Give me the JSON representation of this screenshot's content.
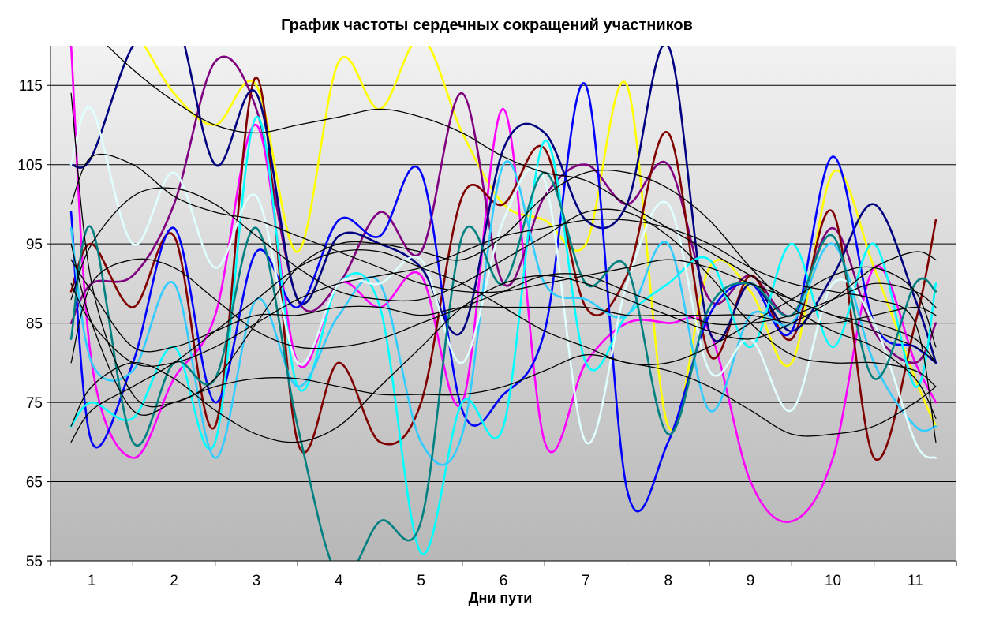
{
  "chart_data": {
    "type": "line",
    "title": "График частоты сердечных сокращений участников",
    "xlabel": "Дни пути",
    "ylabel": "",
    "x": [
      1,
      2,
      3,
      4,
      5,
      6,
      7,
      8,
      9,
      10,
      11
    ],
    "xlim": [
      0.5,
      11.5
    ],
    "ylim": [
      55,
      120
    ],
    "yticks": [
      55,
      65,
      75,
      85,
      95,
      105,
      115
    ],
    "grid": true,
    "legend": "none",
    "smooth": true,
    "background_gradient": [
      "#f2f2f2",
      "#b7b7b7"
    ],
    "series": [
      {
        "color": "#ffff00",
        "x": [
          1.0,
          1.5,
          2.0,
          2.5,
          3.0,
          3.5,
          4.0,
          4.5,
          5.0,
          5.5,
          6.0,
          6.5,
          7.0,
          7.5,
          8.0,
          8.5,
          9.0,
          9.5,
          10.0,
          10.5,
          11.0,
          11.25
        ],
        "values": [
          125,
          122,
          114,
          110,
          115,
          94,
          118,
          112,
          121,
          109,
          100,
          98,
          95,
          115,
          72,
          92,
          89,
          80,
          104,
          92,
          78,
          72
        ]
      },
      {
        "color": "#ff00ff",
        "x": [
          0.75,
          1.0,
          1.5,
          2.0,
          2.5,
          3.0,
          3.5,
          4.0,
          4.5,
          5.0,
          5.5,
          6.0,
          6.5,
          7.0,
          7.5,
          8.0,
          8.5,
          9.0,
          9.5,
          10.0,
          10.5,
          11.0,
          11.25
        ],
        "values": [
          120,
          80,
          68,
          78,
          86,
          110,
          80,
          90,
          87,
          91,
          75,
          112,
          70,
          80,
          85,
          85,
          84,
          65,
          60,
          68,
          92,
          80,
          75
        ]
      },
      {
        "color": "#800080",
        "x": [
          0.75,
          1.0,
          1.5,
          2.0,
          2.5,
          3.0,
          3.5,
          4.0,
          4.5,
          5.0,
          5.5,
          6.0,
          6.5,
          7.0,
          7.5,
          8.0,
          8.5,
          9.0,
          9.5,
          10.0,
          10.5,
          11.0,
          11.25
        ],
        "values": [
          85,
          90,
          91,
          100,
          118,
          112,
          88,
          90,
          99,
          94,
          114,
          90,
          101,
          105,
          100,
          105,
          88,
          91,
          86,
          97,
          84,
          80,
          85
        ]
      },
      {
        "color": "#800000",
        "x": [
          0.75,
          1.0,
          1.5,
          2.0,
          2.5,
          3.0,
          3.5,
          4.0,
          4.5,
          5.0,
          5.5,
          6.0,
          6.5,
          7.0,
          7.5,
          8.0,
          8.5,
          9.0,
          9.5,
          10.0,
          10.5,
          11.0,
          11.25
        ],
        "values": [
          89,
          95,
          87,
          96,
          72,
          116,
          70,
          80,
          70,
          75,
          101,
          100,
          107,
          87,
          91,
          109,
          81,
          91,
          83,
          99,
          68,
          85,
          98
        ]
      },
      {
        "color": "#000080",
        "x": [
          0.75,
          1.0,
          1.5,
          2.0,
          2.5,
          3.0,
          3.5,
          4.0,
          4.5,
          5.0,
          5.5,
          6.0,
          6.5,
          7.0,
          7.5,
          8.0,
          8.5,
          9.0,
          9.5,
          10.0,
          10.5,
          11.0,
          11.25
        ],
        "values": [
          105,
          106,
          120,
          124,
          105,
          114,
          88,
          96,
          95,
          92,
          84,
          107,
          109,
          98,
          100,
          120,
          84,
          90,
          84,
          91,
          100,
          88,
          80
        ]
      },
      {
        "color": "#0000ff",
        "x": [
          0.75,
          1.0,
          1.5,
          2.0,
          2.5,
          3.0,
          3.5,
          4.0,
          4.5,
          5.0,
          5.5,
          6.0,
          6.5,
          7.0,
          7.5,
          8.0,
          8.5,
          9.0,
          9.5,
          10.0,
          10.5,
          11.0,
          11.25
        ],
        "values": [
          99,
          70,
          80,
          97,
          75,
          94,
          87,
          98,
          96,
          104,
          74,
          76,
          84,
          115,
          64,
          70,
          86,
          90,
          84,
          106,
          85,
          82,
          80
        ]
      },
      {
        "color": "#00ffff",
        "x": [
          0.75,
          1.0,
          1.5,
          2.0,
          2.5,
          3.0,
          3.5,
          4.0,
          4.5,
          5.0,
          5.5,
          6.0,
          6.5,
          7.0,
          7.5,
          8.0,
          8.5,
          9.0,
          9.5,
          10.0,
          10.5,
          11.0,
          11.25
        ],
        "values": [
          72,
          75,
          73,
          82,
          70,
          111,
          77,
          90,
          87,
          56,
          75,
          72,
          108,
          80,
          86,
          90,
          93,
          82,
          95,
          82,
          95,
          77,
          90
        ]
      },
      {
        "color": "#33ccff",
        "x": [
          0.75,
          1.0,
          1.5,
          2.0,
          2.5,
          3.0,
          3.5,
          4.0,
          4.5,
          5.0,
          5.5,
          6.0,
          6.5,
          7.0,
          7.5,
          8.0,
          8.5,
          9.0,
          9.5,
          10.0,
          10.5,
          11.0,
          11.25
        ],
        "values": [
          97,
          80,
          79,
          90,
          68,
          88,
          77,
          86,
          90,
          70,
          71,
          105,
          90,
          88,
          86,
          95,
          74,
          86,
          85,
          95,
          80,
          72,
          72
        ]
      },
      {
        "color": "#e0ffff",
        "x": [
          0.75,
          1.0,
          1.5,
          2.0,
          2.5,
          3.0,
          3.5,
          4.0,
          4.5,
          5.0,
          5.5,
          6.0,
          6.5,
          7.0,
          7.5,
          8.0,
          8.5,
          9.0,
          9.5,
          10.0,
          10.5,
          11.0,
          11.25
        ],
        "values": [
          105,
          112,
          95,
          104,
          92,
          101,
          80,
          90,
          90,
          93,
          80,
          98,
          103,
          70,
          90,
          100,
          79,
          83,
          74,
          90,
          85,
          70,
          68
        ]
      },
      {
        "color": "#008080",
        "x": [
          0.75,
          1.0,
          1.5,
          2.0,
          2.5,
          3.0,
          3.5,
          4.0,
          4.5,
          5.0,
          5.5,
          6.0,
          6.5,
          7.0,
          7.5,
          8.0,
          8.5,
          9.0,
          9.5,
          10.0,
          10.5,
          11.0,
          11.25
        ],
        "values": [
          83,
          97,
          70,
          80,
          78,
          97,
          72,
          53,
          60,
          60,
          96,
          90,
          104,
          90,
          92,
          71,
          87,
          90,
          86,
          96,
          78,
          90,
          89
        ]
      },
      {
        "color": "#000000",
        "x": [
          0.75,
          1.0,
          1.5,
          2.0,
          2.5,
          3.0,
          3.5,
          4.0,
          4.5,
          5.0,
          5.5,
          6.0,
          6.5,
          7.0,
          7.5,
          8.0,
          8.5,
          9.0,
          9.5,
          10.0,
          10.5,
          11.0,
          11.25
        ],
        "values": [
          125,
          122,
          117,
          113,
          110,
          109,
          110,
          111,
          112,
          111,
          109,
          106,
          104,
          103,
          100,
          97,
          94,
          91,
          88,
          86,
          84,
          82,
          80
        ]
      },
      {
        "color": "#000000",
        "x": [
          0.75,
          1.0,
          1.5,
          2.0,
          2.5,
          3.0,
          3.5,
          4.0,
          4.5,
          5.0,
          5.5,
          6.0,
          6.5,
          7.0,
          7.5,
          8.0,
          8.5,
          9.0,
          9.5,
          10.0,
          10.5,
          11.0,
          11.25
        ],
        "values": [
          114,
          90,
          76,
          75,
          78,
          85,
          92,
          95,
          95,
          94,
          93,
          96,
          101,
          104,
          104,
          102,
          98,
          92,
          87,
          84,
          82,
          78,
          73
        ]
      },
      {
        "color": "#000000",
        "x": [
          0.75,
          1.0,
          1.5,
          2.0,
          2.5,
          3.0,
          3.5,
          4.0,
          4.5,
          5.0,
          5.5,
          6.0,
          6.5,
          7.0,
          7.5,
          8.0,
          8.5,
          9.0,
          9.5,
          10.0,
          10.5,
          11.0,
          11.25
        ],
        "values": [
          100,
          106,
          105,
          101,
          99,
          98,
          96,
          94,
          92,
          90,
          89,
          89,
          90,
          91,
          92,
          93,
          92,
          90,
          88,
          86,
          85,
          83,
          80
        ]
      },
      {
        "color": "#000000",
        "x": [
          0.75,
          1.0,
          1.5,
          2.0,
          2.5,
          3.0,
          3.5,
          4.0,
          4.5,
          5.0,
          5.5,
          6.0,
          6.5,
          7.0,
          7.5,
          8.0,
          8.5,
          9.0,
          9.5,
          10.0,
          10.5,
          11.0,
          11.25
        ],
        "values": [
          88,
          95,
          101,
          102,
          100,
          96,
          92,
          89,
          88,
          88,
          90,
          93,
          96,
          99,
          99,
          96,
          91,
          85,
          81,
          80,
          80,
          79,
          77
        ]
      },
      {
        "color": "#000000",
        "x": [
          0.75,
          1.0,
          1.5,
          2.0,
          2.5,
          3.0,
          3.5,
          4.0,
          4.5,
          5.0,
          5.5,
          6.0,
          6.5,
          7.0,
          7.5,
          8.0,
          8.5,
          9.0,
          9.5,
          10.0,
          10.5,
          11.0,
          11.25
        ],
        "values": [
          80,
          90,
          93,
          92,
          88,
          84,
          82,
          82,
          83,
          85,
          87,
          89,
          91,
          91,
          89,
          87,
          85,
          85,
          86,
          88,
          90,
          89,
          87
        ]
      },
      {
        "color": "#000000",
        "x": [
          0.75,
          1.0,
          1.5,
          2.0,
          2.5,
          3.0,
          3.5,
          4.0,
          4.5,
          5.0,
          5.5,
          6.0,
          6.5,
          7.0,
          7.5,
          8.0,
          8.5,
          9.0,
          9.5,
          10.0,
          10.5,
          11.0,
          11.25
        ],
        "values": [
          93,
          89,
          82,
          82,
          84,
          86,
          86,
          87,
          87,
          86,
          87,
          87,
          87,
          87,
          86,
          86,
          86,
          86,
          85,
          85,
          86,
          87,
          86
        ]
      },
      {
        "color": "#000000",
        "x": [
          0.75,
          1.0,
          1.5,
          2.0,
          2.5,
          3.0,
          3.5,
          4.0,
          4.5,
          5.0,
          5.5,
          6.0,
          6.5,
          7.0,
          7.5,
          8.0,
          8.5,
          9.0,
          9.5,
          10.0,
          10.5,
          11.0,
          11.25
        ],
        "values": [
          95,
          85,
          74,
          75,
          77,
          78,
          78,
          77,
          76,
          76,
          76,
          77,
          79,
          81,
          80,
          79,
          77,
          74,
          71,
          71,
          72,
          75,
          77
        ]
      },
      {
        "color": "#000000",
        "x": [
          0.75,
          1.0,
          1.5,
          2.0,
          2.5,
          3.0,
          3.5,
          4.0,
          4.5,
          5.0,
          5.5,
          6.0,
          6.5,
          7.0,
          7.5,
          8.0,
          8.5,
          9.0,
          9.5,
          10.0,
          10.5,
          11.0,
          11.25
        ],
        "values": [
          70,
          74,
          77,
          80,
          84,
          88,
          92,
          94,
          94,
          92,
          90,
          87,
          84,
          82,
          80,
          80,
          82,
          85,
          88,
          91,
          92,
          89,
          82
        ]
      },
      {
        "color": "#000000",
        "x": [
          0.75,
          1.0,
          1.5,
          2.0,
          2.5,
          3.0,
          3.5,
          4.0,
          4.5,
          5.0,
          5.5,
          6.0,
          6.5,
          7.0,
          7.5,
          8.0,
          8.5,
          9.0,
          9.5,
          10.0,
          10.5,
          11.0,
          11.25
        ],
        "values": [
          72,
          77,
          80,
          78,
          74,
          71,
          70,
          72,
          77,
          82,
          87,
          90,
          91,
          90,
          88,
          86,
          84,
          83,
          85,
          88,
          92,
          94,
          93
        ]
      },
      {
        "color": "#000000",
        "x": [
          0.75,
          1.0,
          1.5,
          2.0,
          2.5,
          3.0,
          3.5,
          4.0,
          4.5,
          5.0,
          5.5,
          6.0,
          6.5,
          7.0,
          7.5,
          8.0,
          8.5,
          9.0,
          9.5,
          10.0,
          10.5,
          11.0,
          11.25
        ],
        "values": [
          90,
          85,
          80,
          80,
          82,
          85,
          88,
          90,
          91,
          92,
          94,
          96,
          97,
          98,
          98,
          97,
          95,
          92,
          90,
          89,
          88,
          85,
          70
        ]
      }
    ]
  }
}
